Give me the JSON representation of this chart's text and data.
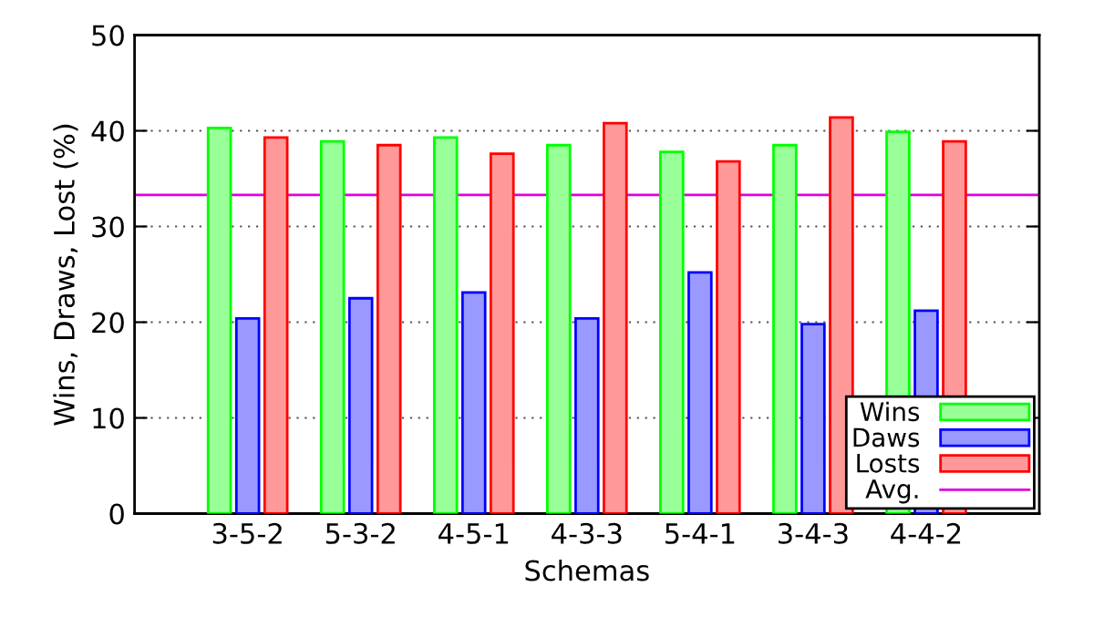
{
  "chart_data": {
    "type": "bar",
    "xlabel": "Schemas",
    "ylabel": "Wins, Draws, Lost (%)",
    "categories": [
      "3-5-2",
      "5-3-2",
      "4-5-1",
      "4-3-3",
      "5-4-1",
      "3-4-3",
      "4-4-2"
    ],
    "series": [
      {
        "name": "Wins",
        "color": "#99ff99",
        "values": [
          40.3,
          38.9,
          39.3,
          38.5,
          37.8,
          38.5,
          39.9
        ]
      },
      {
        "name": "Daws",
        "color": "#9999ff",
        "values": [
          20.4,
          22.5,
          23.1,
          20.4,
          25.2,
          19.8,
          21.2
        ]
      },
      {
        "name": "Losts",
        "color": "#ff9999",
        "values": [
          39.3,
          38.5,
          37.6,
          40.8,
          36.8,
          41.4,
          38.9
        ]
      }
    ],
    "ref_lines": [
      {
        "axis": "y",
        "value": 33.3,
        "label": "Avg.",
        "color": "#e000e0"
      }
    ],
    "ylim": [
      0,
      50
    ],
    "yticks": [
      0,
      10,
      20,
      30,
      40,
      50
    ],
    "grid": "y",
    "legend": "bottom right"
  }
}
